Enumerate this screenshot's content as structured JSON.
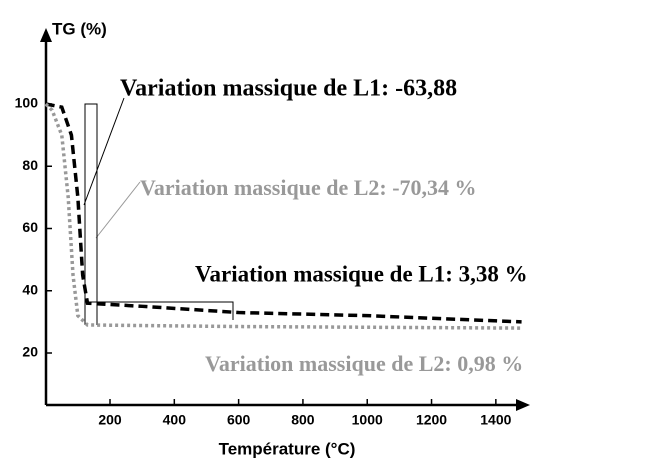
{
  "chart_data": {
    "type": "line",
    "y_label": "TG (%)",
    "x_label": "Température (°C)",
    "xlim": [
      0,
      1500
    ],
    "ylim": [
      0,
      120
    ],
    "xticks": [
      200,
      400,
      600,
      800,
      1000,
      1200,
      1400
    ],
    "yticks": [
      20,
      40,
      60,
      80,
      100
    ],
    "series": [
      {
        "name": "L1",
        "color": "#000000",
        "style": "dashed",
        "x": [
          0,
          50,
          80,
          100,
          115,
          130,
          300,
          600,
          1000,
          1480
        ],
        "values": [
          100,
          99,
          90,
          70,
          45,
          36,
          35,
          33,
          32,
          30
        ]
      },
      {
        "name": "L2",
        "color": "#999999",
        "style": "dotted",
        "x": [
          0,
          20,
          50,
          70,
          85,
          100,
          130,
          600,
          1480
        ],
        "values": [
          100,
          98,
          90,
          70,
          45,
          32,
          29,
          28.5,
          28
        ]
      }
    ],
    "annotations": [
      {
        "text": "Variation massique de L1: -63,88",
        "color": "#000000"
      },
      {
        "text": "Variation massique de L2: -70,34 %",
        "color": "#999999"
      },
      {
        "text": "Variation massique de L1: 3,38 %",
        "color": "#000000"
      },
      {
        "text": "Variation massique de L2: 0,98 %",
        "color": "#999999"
      }
    ]
  }
}
